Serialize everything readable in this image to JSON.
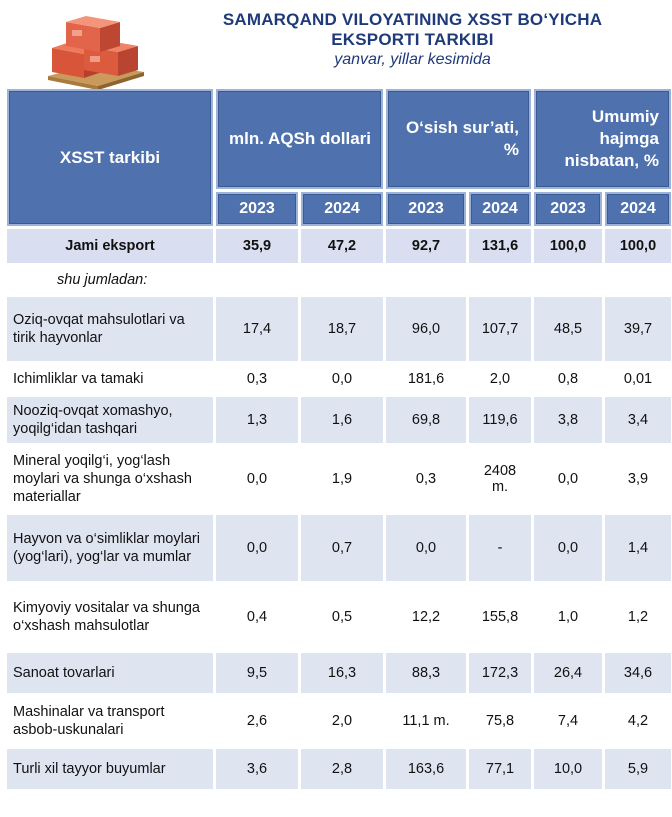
{
  "title": {
    "line1": "SAMARQAND VILOYATINING XSST BO‘YICHA",
    "line2": "EKSPORTI TARKIBI",
    "subtitle": "yanvar, yillar kesimida"
  },
  "table": {
    "row_header": "XSST tarkibi",
    "groups": [
      {
        "label": "mln.  AQSh dollari"
      },
      {
        "label": "O‘sish sur’ati, %"
      },
      {
        "label": "Umumiy hajmga nisbatan, %"
      }
    ],
    "years": [
      "2023",
      "2024",
      "2023",
      "2024",
      "2023",
      "2024"
    ],
    "total": {
      "label": "Jami eksport",
      "values": [
        "35,9",
        "47,2",
        "92,7",
        "131,6",
        "100,0",
        "100,0"
      ]
    },
    "note": "shu jumladan:",
    "rows": [
      {
        "label": "Oziq-ovqat mahsulotlari va tirik hayvonlar",
        "values": [
          "17,4",
          "18,7",
          "96,0",
          "107,7",
          "48,5",
          "39,7"
        ]
      },
      {
        "label": "Ichimliklar va tamaki",
        "values": [
          "0,3",
          "0,0",
          "181,6",
          "2,0",
          "0,8",
          "0,01"
        ]
      },
      {
        "label": "Nooziq-ovqat xomashyo, yoqilg‘idan tashqari",
        "values": [
          "1,3",
          "1,6",
          "69,8",
          "119,6",
          "3,8",
          "3,4"
        ]
      },
      {
        "label": "Mineral yoqilg‘i, yog‘lash moylari va shunga o‘xshash materiallar",
        "values": [
          "0,0",
          "1,9",
          "0,3",
          "2408 m.",
          "0,0",
          "3,9"
        ]
      },
      {
        "label": "Hayvon va o‘simliklar moylari (yog‘lari), yog‘lar va mumlar",
        "values": [
          "0,0",
          "0,7",
          "0,0",
          "-",
          "0,0",
          "1,4"
        ]
      },
      {
        "label": "Kimyoviy vositalar va shunga o‘xshash mahsulotlar",
        "values": [
          "0,4",
          "0,5",
          "12,2",
          "155,8",
          "1,0",
          "1,2"
        ]
      },
      {
        "label": "Sanoat tovarlari",
        "values": [
          "9,5",
          "16,3",
          "88,3",
          "172,3",
          "26,4",
          "34,6"
        ]
      },
      {
        "label": "Mashinalar va transport asbob-uskunalari",
        "values": [
          "2,6",
          "2,0",
          "11,1 m.",
          "75,8",
          "7,4",
          "4,2"
        ]
      },
      {
        "label": "Turli xil tayyor buyumlar",
        "values": [
          "3,6",
          "2,8",
          "163,6",
          "77,1",
          "10,0",
          "5,9"
        ]
      }
    ]
  },
  "colors": {
    "header_bg": "#4f72ae",
    "title_color": "#1f3a78",
    "row_shade": "#dfe4f1"
  }
}
